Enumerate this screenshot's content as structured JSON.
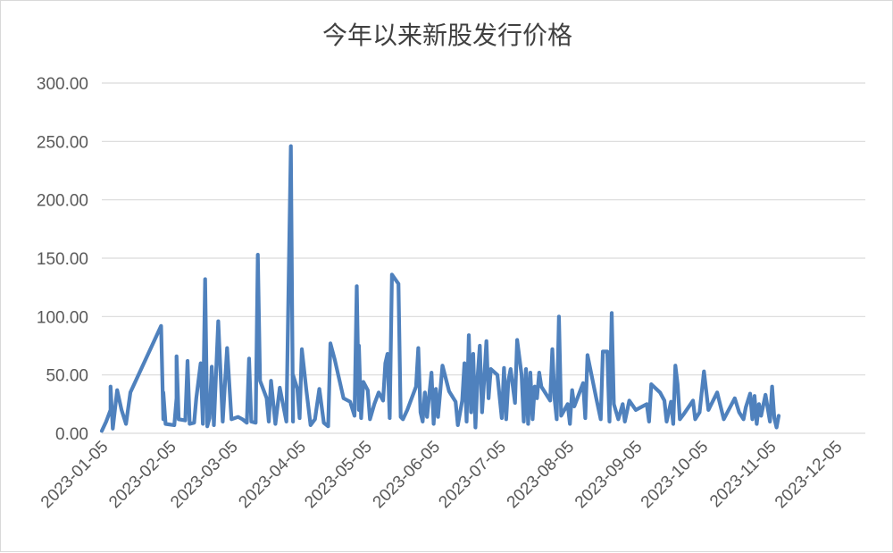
{
  "chart_data": {
    "type": "line",
    "title": "今年以来新股发行价格",
    "xlabel": "",
    "ylabel": "",
    "ylim": [
      0,
      300
    ],
    "y_ticks": [
      "0.00",
      "50.00",
      "100.00",
      "150.00",
      "200.00",
      "250.00",
      "300.00"
    ],
    "x_ticks": [
      "2023-01-05",
      "2023-02-05",
      "2023-03-05",
      "2023-04-05",
      "2023-05-05",
      "2023-06-05",
      "2023-07-05",
      "2023-08-05",
      "2023-09-05",
      "2023-10-05",
      "2023-11-05",
      "2023-12-05"
    ],
    "grid": true,
    "legend": "none",
    "series": [
      {
        "color": "#4f81bd",
        "points": [
          [
            "2023-01-05",
            2
          ],
          [
            "2023-01-07",
            10
          ],
          [
            "2023-01-09",
            20
          ],
          [
            "2023-01-09",
            40
          ],
          [
            "2023-01-10",
            4
          ],
          [
            "2023-01-12",
            37
          ],
          [
            "2023-01-14",
            20
          ],
          [
            "2023-01-16",
            8
          ],
          [
            "2023-01-18",
            35
          ],
          [
            "2023-02-01",
            92
          ],
          [
            "2023-02-02",
            12
          ],
          [
            "2023-02-02",
            35
          ],
          [
            "2023-02-03",
            8
          ],
          [
            "2023-02-07",
            7
          ],
          [
            "2023-02-08",
            30
          ],
          [
            "2023-02-08",
            66
          ],
          [
            "2023-02-09",
            12
          ],
          [
            "2023-02-12",
            11
          ],
          [
            "2023-02-13",
            62
          ],
          [
            "2023-02-14",
            8
          ],
          [
            "2023-02-16",
            9
          ],
          [
            "2023-02-17",
            30
          ],
          [
            "2023-02-19",
            60
          ],
          [
            "2023-02-20",
            8
          ],
          [
            "2023-02-21",
            132
          ],
          [
            "2023-02-22",
            6
          ],
          [
            "2023-02-23",
            13
          ],
          [
            "2023-02-24",
            57
          ],
          [
            "2023-02-25",
            7
          ],
          [
            "2023-02-27",
            96
          ],
          [
            "2023-03-01",
            10
          ],
          [
            "2023-03-03",
            73
          ],
          [
            "2023-03-05",
            12
          ],
          [
            "2023-03-08",
            14
          ],
          [
            "2023-03-10",
            12
          ],
          [
            "2023-03-12",
            9
          ],
          [
            "2023-03-13",
            64
          ],
          [
            "2023-03-14",
            10
          ],
          [
            "2023-03-16",
            9
          ],
          [
            "2023-03-17",
            153
          ],
          [
            "2023-03-18",
            45
          ],
          [
            "2023-03-19",
            40
          ],
          [
            "2023-03-21",
            30
          ],
          [
            "2023-03-22",
            10
          ],
          [
            "2023-03-23",
            45
          ],
          [
            "2023-03-25",
            8
          ],
          [
            "2023-03-27",
            39
          ],
          [
            "2023-03-30",
            10
          ],
          [
            "2023-04-01",
            246
          ],
          [
            "2023-04-02",
            10
          ],
          [
            "2023-04-02",
            50
          ],
          [
            "2023-04-04",
            38
          ],
          [
            "2023-04-05",
            13
          ],
          [
            "2023-04-06",
            72
          ],
          [
            "2023-04-08",
            38
          ],
          [
            "2023-04-10",
            7
          ],
          [
            "2023-04-12",
            12
          ],
          [
            "2023-04-14",
            38
          ],
          [
            "2023-04-16",
            9
          ],
          [
            "2023-04-18",
            6
          ],
          [
            "2023-04-19",
            77
          ],
          [
            "2023-04-21",
            63
          ],
          [
            "2023-04-25",
            30
          ],
          [
            "2023-04-28",
            27
          ],
          [
            "2023-04-30",
            15
          ],
          [
            "2023-05-01",
            126
          ],
          [
            "2023-05-02",
            20
          ],
          [
            "2023-05-02",
            75
          ],
          [
            "2023-05-03",
            13
          ],
          [
            "2023-05-04",
            44
          ],
          [
            "2023-05-06",
            37
          ],
          [
            "2023-05-07",
            12
          ],
          [
            "2023-05-09",
            25
          ],
          [
            "2023-05-11",
            35
          ],
          [
            "2023-05-13",
            28
          ],
          [
            "2023-05-14",
            60
          ],
          [
            "2023-05-15",
            68
          ],
          [
            "2023-05-16",
            13
          ],
          [
            "2023-05-17",
            136
          ],
          [
            "2023-05-20",
            128
          ],
          [
            "2023-05-21",
            14
          ],
          [
            "2023-05-22",
            12
          ],
          [
            "2023-05-24",
            20
          ],
          [
            "2023-05-28",
            40
          ],
          [
            "2023-05-29",
            73
          ],
          [
            "2023-05-30",
            18
          ],
          [
            "2023-05-31",
            10
          ],
          [
            "2023-06-01",
            35
          ],
          [
            "2023-06-02",
            14
          ],
          [
            "2023-06-04",
            52
          ],
          [
            "2023-06-05",
            8
          ],
          [
            "2023-06-06",
            38
          ],
          [
            "2023-06-07",
            14
          ],
          [
            "2023-06-09",
            58
          ],
          [
            "2023-06-12",
            36
          ],
          [
            "2023-06-15",
            27
          ],
          [
            "2023-06-16",
            7
          ],
          [
            "2023-06-18",
            28
          ],
          [
            "2023-06-19",
            60
          ],
          [
            "2023-06-20",
            10
          ],
          [
            "2023-06-21",
            84
          ],
          [
            "2023-06-22",
            18
          ],
          [
            "2023-06-23",
            68
          ],
          [
            "2023-06-24",
            5
          ],
          [
            "2023-06-25",
            48
          ],
          [
            "2023-06-26",
            75
          ],
          [
            "2023-06-27",
            18
          ],
          [
            "2023-06-28",
            46
          ],
          [
            "2023-06-29",
            79
          ],
          [
            "2023-06-30",
            30
          ],
          [
            "2023-07-01",
            55
          ],
          [
            "2023-07-04",
            50
          ],
          [
            "2023-07-06",
            13
          ],
          [
            "2023-07-07",
            56
          ],
          [
            "2023-07-08",
            12
          ],
          [
            "2023-07-09",
            45
          ],
          [
            "2023-07-10",
            55
          ],
          [
            "2023-07-12",
            26
          ],
          [
            "2023-07-13",
            80
          ],
          [
            "2023-07-15",
            50
          ],
          [
            "2023-07-16",
            10
          ],
          [
            "2023-07-17",
            55
          ],
          [
            "2023-07-18",
            8
          ],
          [
            "2023-07-19",
            52
          ],
          [
            "2023-07-20",
            12
          ],
          [
            "2023-07-21",
            40
          ],
          [
            "2023-07-22",
            30
          ],
          [
            "2023-07-23",
            52
          ],
          [
            "2023-07-24",
            40
          ],
          [
            "2023-07-28",
            28
          ],
          [
            "2023-07-29",
            72
          ],
          [
            "2023-07-30",
            30
          ],
          [
            "2023-07-31",
            12
          ],
          [
            "2023-08-01",
            100
          ],
          [
            "2023-08-02",
            15
          ],
          [
            "2023-08-05",
            25
          ],
          [
            "2023-08-06",
            8
          ],
          [
            "2023-08-07",
            37
          ],
          [
            "2023-08-08",
            23
          ],
          [
            "2023-08-12",
            43
          ],
          [
            "2023-08-13",
            13
          ],
          [
            "2023-08-14",
            67
          ],
          [
            "2023-08-18",
            30
          ],
          [
            "2023-08-20",
            12
          ],
          [
            "2023-08-21",
            70
          ],
          [
            "2023-08-23",
            70
          ],
          [
            "2023-08-24",
            10
          ],
          [
            "2023-08-25",
            103
          ],
          [
            "2023-08-26",
            25
          ],
          [
            "2023-08-28",
            12
          ],
          [
            "2023-08-30",
            25
          ],
          [
            "2023-08-31",
            10
          ],
          [
            "2023-09-02",
            28
          ],
          [
            "2023-09-05",
            20
          ],
          [
            "2023-09-10",
            25
          ],
          [
            "2023-09-11",
            10
          ],
          [
            "2023-09-12",
            42
          ],
          [
            "2023-09-16",
            35
          ],
          [
            "2023-09-18",
            28
          ],
          [
            "2023-09-19",
            10
          ],
          [
            "2023-09-21",
            27
          ],
          [
            "2023-09-22",
            8
          ],
          [
            "2023-09-23",
            58
          ],
          [
            "2023-09-24",
            42
          ],
          [
            "2023-09-25",
            12
          ],
          [
            "2023-09-27",
            17
          ],
          [
            "2023-10-01",
            28
          ],
          [
            "2023-10-02",
            12
          ],
          [
            "2023-10-04",
            18
          ],
          [
            "2023-10-06",
            53
          ],
          [
            "2023-10-08",
            20
          ],
          [
            "2023-10-12",
            35
          ],
          [
            "2023-10-15",
            12
          ],
          [
            "2023-10-20",
            30
          ],
          [
            "2023-10-22",
            18
          ],
          [
            "2023-10-24",
            12
          ],
          [
            "2023-10-25",
            22
          ],
          [
            "2023-10-27",
            34
          ],
          [
            "2023-10-28",
            12
          ],
          [
            "2023-10-29",
            32
          ],
          [
            "2023-10-30",
            8
          ],
          [
            "2023-10-31",
            25
          ],
          [
            "2023-11-01",
            15
          ],
          [
            "2023-11-03",
            33
          ],
          [
            "2023-11-05",
            10
          ],
          [
            "2023-11-06",
            40
          ],
          [
            "2023-11-07",
            13
          ],
          [
            "2023-11-08",
            5
          ],
          [
            "2023-11-09",
            15
          ]
        ]
      }
    ]
  }
}
